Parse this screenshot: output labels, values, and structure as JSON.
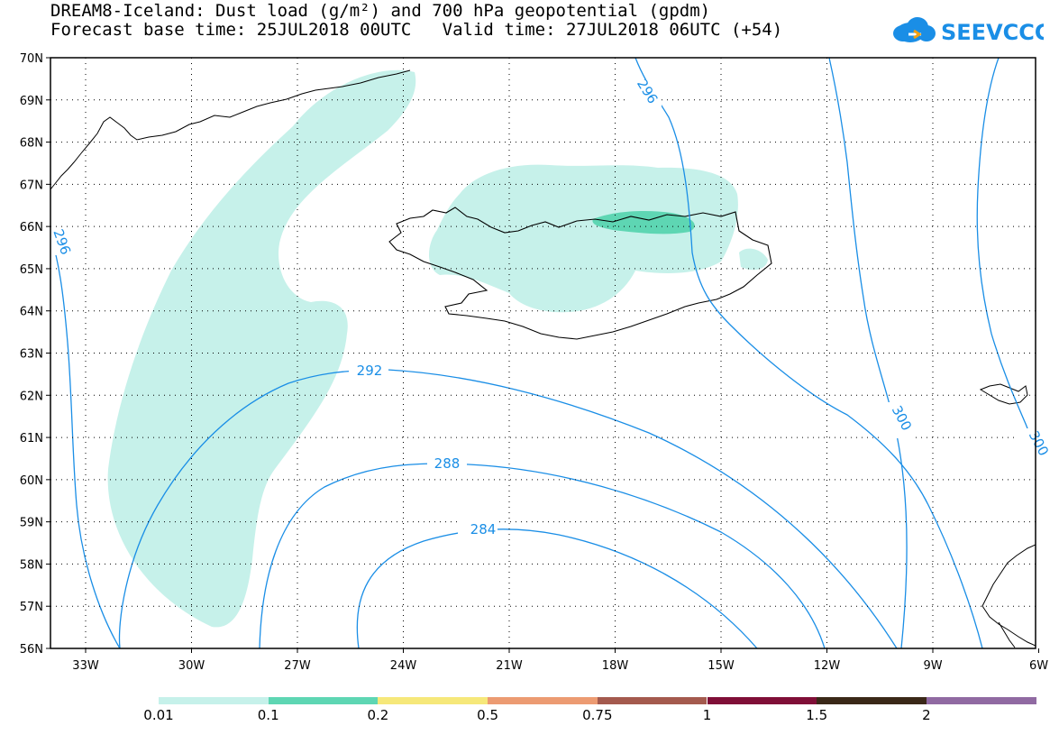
{
  "header": {
    "title_line_1": "DREAM8-Iceland: Dust load (g/m²) and 700 hPa geopotential (gpdm)",
    "title_line_2": "Forecast base time: 25JUL2018 00UTC   Valid time: 27JUL2018 06UTC (+54)",
    "logo_text": "SEEVCCC"
  },
  "map": {
    "lat_labels": [
      "70N",
      "69N",
      "68N",
      "67N",
      "66N",
      "65N",
      "64N",
      "63N",
      "62N",
      "61N",
      "60N",
      "59N",
      "58N",
      "57N",
      "56N"
    ],
    "lon_labels": [
      "33W",
      "30W",
      "27W",
      "24W",
      "21W",
      "18W",
      "15W",
      "12W",
      "9W",
      "6W"
    ],
    "contour_labels": {
      "c284": "284",
      "c288": "288",
      "c292": "292",
      "c296": "296",
      "c296_left": "296",
      "c300": "300",
      "c300_right": "300"
    },
    "colors": {
      "contour": "#1a8ee6",
      "dust_low": "#c6f1ea",
      "dust_mid": "#5ed6b3",
      "coast": "#000000"
    }
  },
  "legend": {
    "labels": [
      "0.01",
      "0.1",
      "0.2",
      "0.5",
      "0.75",
      "1",
      "1.5",
      "2"
    ],
    "colors": [
      "#c6f1ea",
      "#5ed6b3",
      "#f6e87a",
      "#ec9b72",
      "#a45a4e",
      "#7f0f37",
      "#3a2818",
      "#906aa2"
    ]
  }
}
